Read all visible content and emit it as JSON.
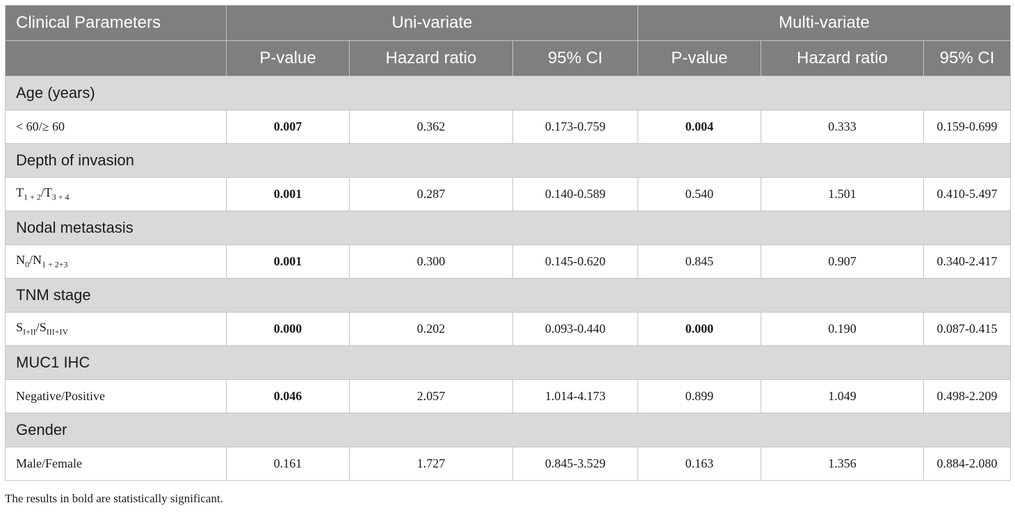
{
  "table": {
    "header_row1": {
      "col0": "Clinical Parameters",
      "uni": "Uni-variate",
      "multi": "Multi-variate"
    },
    "header_row2": {
      "uni_p": "P-value",
      "uni_hr": "Hazard ratio",
      "uni_ci": "95% CI",
      "multi_p": "P-value",
      "multi_hr": "Hazard ratio",
      "multi_ci": "95% CI"
    },
    "groups": [
      {
        "section": "Age (years)",
        "label": {
          "main": "< 60/≥ 60"
        },
        "uni_p": "0.007",
        "uni_p_bold": true,
        "uni_hr": "0.362",
        "uni_ci": "0.173-0.759",
        "multi_p": "0.004",
        "multi_p_bold": true,
        "multi_hr": "0.333",
        "multi_ci": "0.159-0.699"
      },
      {
        "section": "Depth of invasion",
        "label": {
          "a": "T",
          "a_sub": "1 + 2",
          "b": "/T",
          "b_sub": "3 + 4"
        },
        "uni_p": "0.001",
        "uni_p_bold": true,
        "uni_hr": "0.287",
        "uni_ci": "0.140-0.589",
        "multi_p": "0.540",
        "multi_p_bold": false,
        "multi_hr": "1.501",
        "multi_ci": "0.410-5.497"
      },
      {
        "section": "Nodal metastasis",
        "label": {
          "a": "N",
          "a_sub": "0",
          "b": "/N",
          "b_sub": "1 + 2+3"
        },
        "uni_p": "0.001",
        "uni_p_bold": true,
        "uni_hr": "0.300",
        "uni_ci": "0.145-0.620",
        "multi_p": "0.845",
        "multi_p_bold": false,
        "multi_hr": "0.907",
        "multi_ci": "0.340-2.417"
      },
      {
        "section": "TNM stage",
        "label": {
          "a": "S",
          "a_sub": "I+II",
          "b": "/S",
          "b_sub": "III+IV"
        },
        "uni_p": "0.000",
        "uni_p_bold": true,
        "uni_hr": "0.202",
        "uni_ci": "0.093-0.440",
        "multi_p": "0.000",
        "multi_p_bold": true,
        "multi_hr": "0.190",
        "multi_ci": "0.087-0.415"
      },
      {
        "section": "MUC1 IHC",
        "label": {
          "main": "Negative/Positive"
        },
        "uni_p": "0.046",
        "uni_p_bold": true,
        "uni_hr": "2.057",
        "uni_ci": "1.014-4.173",
        "multi_p": "0.899",
        "multi_p_bold": false,
        "multi_hr": "1.049",
        "multi_ci": "0.498-2.209"
      },
      {
        "section": "Gender",
        "label": {
          "main": "Male/Female"
        },
        "uni_p": "0.161",
        "uni_p_bold": false,
        "uni_hr": "1.727",
        "uni_ci": "0.845-3.529",
        "multi_p": "0.163",
        "multi_p_bold": false,
        "multi_hr": "1.356",
        "multi_ci": "0.884-2.080"
      }
    ]
  },
  "footnote": "The results in bold are statistically significant."
}
